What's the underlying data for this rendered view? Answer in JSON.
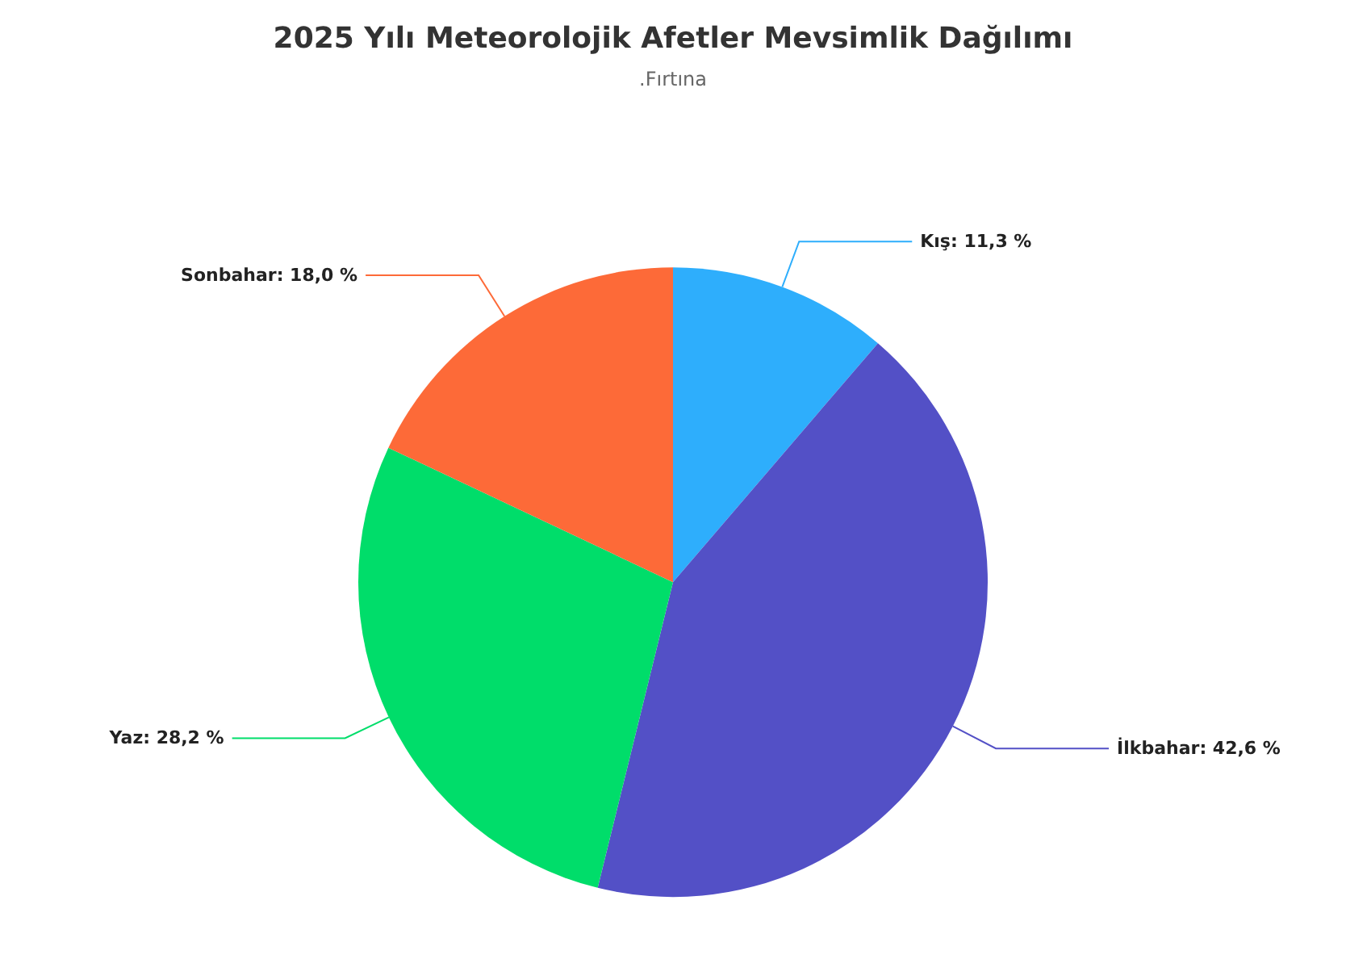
{
  "chart_data": {
    "type": "pie",
    "title": "2025 Yılı Meteorolojik Afetler Mevsimlik Dağılımı",
    "subtitle": ".Fırtına",
    "categories": [
      "Kış",
      "İlkbahar",
      "Yaz",
      "Sonbahar"
    ],
    "values": [
      11.3,
      42.6,
      28.2,
      18.0
    ],
    "colors": [
      "#2eaefc",
      "#5350c6",
      "#00dd6a",
      "#fd6a38"
    ],
    "value_labels": [
      "11,3 %",
      "42,6 %",
      "28,2 %",
      "18,0 %"
    ],
    "legend": false
  }
}
